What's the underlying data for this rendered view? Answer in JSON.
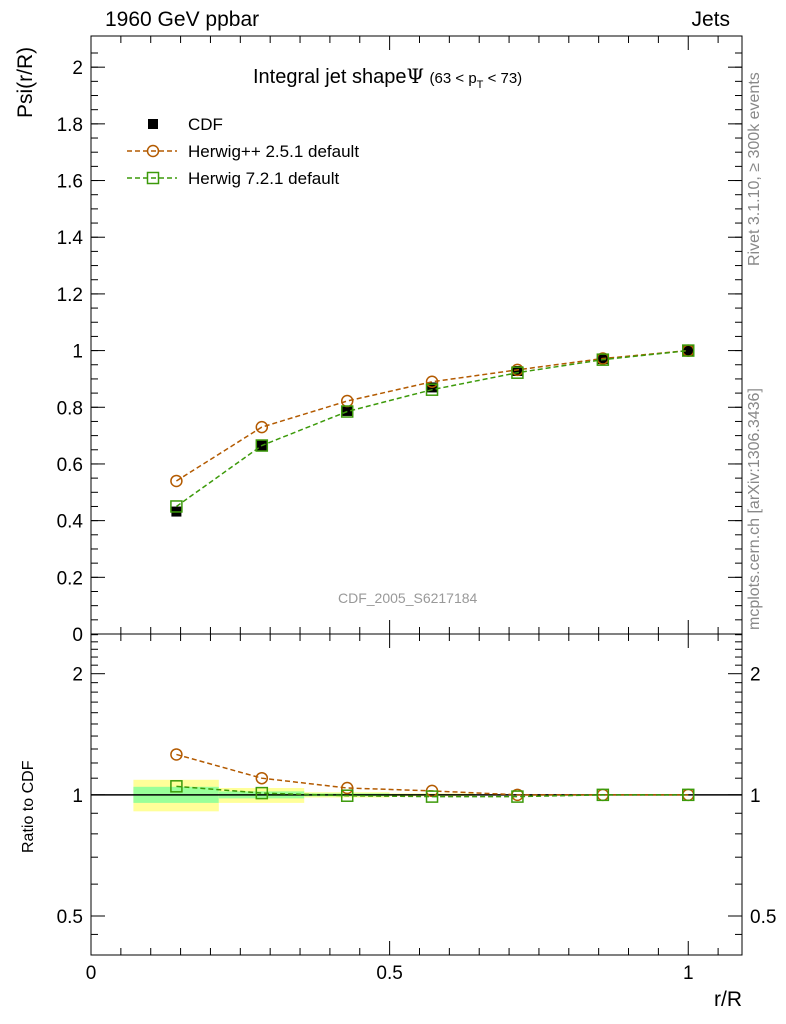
{
  "header": {
    "left": "1960 GeV ppbar",
    "right": "Jets"
  },
  "side": {
    "rivet": "Rivet 3.1.10, ≥ 300k events",
    "mcplots": "mcplots.cern.ch [arXiv:1306.3436]"
  },
  "chart_data": [
    {
      "type": "line",
      "title_main": "Integral jet shape",
      "title_symbol": "Ψ",
      "title_range": "(63 < p",
      "title_sub": "T",
      "title_end": " < 73)",
      "watermark": "CDF_2005_S6217184",
      "ylabel": "Psi(r/R)",
      "xlabel": "r/R",
      "xlim": [
        0,
        1.09
      ],
      "ylim": [
        0,
        2.11
      ],
      "yticks": [
        "0",
        "0.2",
        "0.4",
        "0.6",
        "0.8",
        "1",
        "1.2",
        "1.4",
        "1.6",
        "1.8",
        "2"
      ],
      "xticks": [
        "0",
        "0.5",
        "1"
      ],
      "legend_position": "top-left",
      "x": [
        0.143,
        0.286,
        0.429,
        0.571,
        0.714,
        0.857,
        1.0
      ],
      "series": [
        {
          "name": "CDF",
          "marker": "filled-square",
          "color": "#000000",
          "values": [
            0.432,
            0.665,
            0.787,
            0.87,
            0.928,
            0.97,
            1.0
          ]
        },
        {
          "name": "Herwig++ 2.5.1 default",
          "marker": "open-circle",
          "color": "#b35a00",
          "values": [
            0.54,
            0.73,
            0.822,
            0.89,
            0.932,
            0.972,
            1.0
          ]
        },
        {
          "name": "Herwig 7.2.1 default",
          "marker": "open-square",
          "color": "#3c9a0a",
          "values": [
            0.45,
            0.665,
            0.785,
            0.862,
            0.922,
            0.968,
            1.0
          ]
        }
      ]
    },
    {
      "type": "line",
      "ylabel": "Ratio to CDF",
      "yscale": "log",
      "ylim": [
        0.4,
        2.51
      ],
      "yticks": [
        "0.5",
        "1",
        "2"
      ],
      "x": [
        0.143,
        0.286,
        0.429,
        0.571,
        0.714,
        0.857,
        1.0
      ],
      "bands": [
        {
          "x": [
            0.071,
            0.214
          ],
          "yellow": [
            0.91,
            1.09
          ],
          "green": [
            0.955,
            1.047
          ]
        },
        {
          "x": [
            0.214,
            0.357
          ],
          "yellow": [
            0.955,
            1.04
          ],
          "green": [
            0.98,
            1.02
          ]
        },
        {
          "x": [
            0.357,
            0.5
          ],
          "yellow": [
            0.985,
            1.015
          ],
          "green": [
            0.992,
            1.008
          ]
        },
        {
          "x": [
            0.5,
            0.643
          ],
          "yellow": [
            0.992,
            1.008
          ],
          "green": [
            0.996,
            1.004
          ]
        }
      ],
      "series": [
        {
          "name": "Herwig++ 2.5.1 default",
          "color": "#b35a00",
          "values": [
            1.26,
            1.1,
            1.04,
            1.023,
            1.0,
            1.0,
            1.0
          ]
        },
        {
          "name": "Herwig 7.2.1 default",
          "color": "#3c9a0a",
          "values": [
            1.05,
            1.01,
            0.995,
            0.99,
            0.99,
            1.0,
            1.0
          ]
        }
      ]
    }
  ]
}
